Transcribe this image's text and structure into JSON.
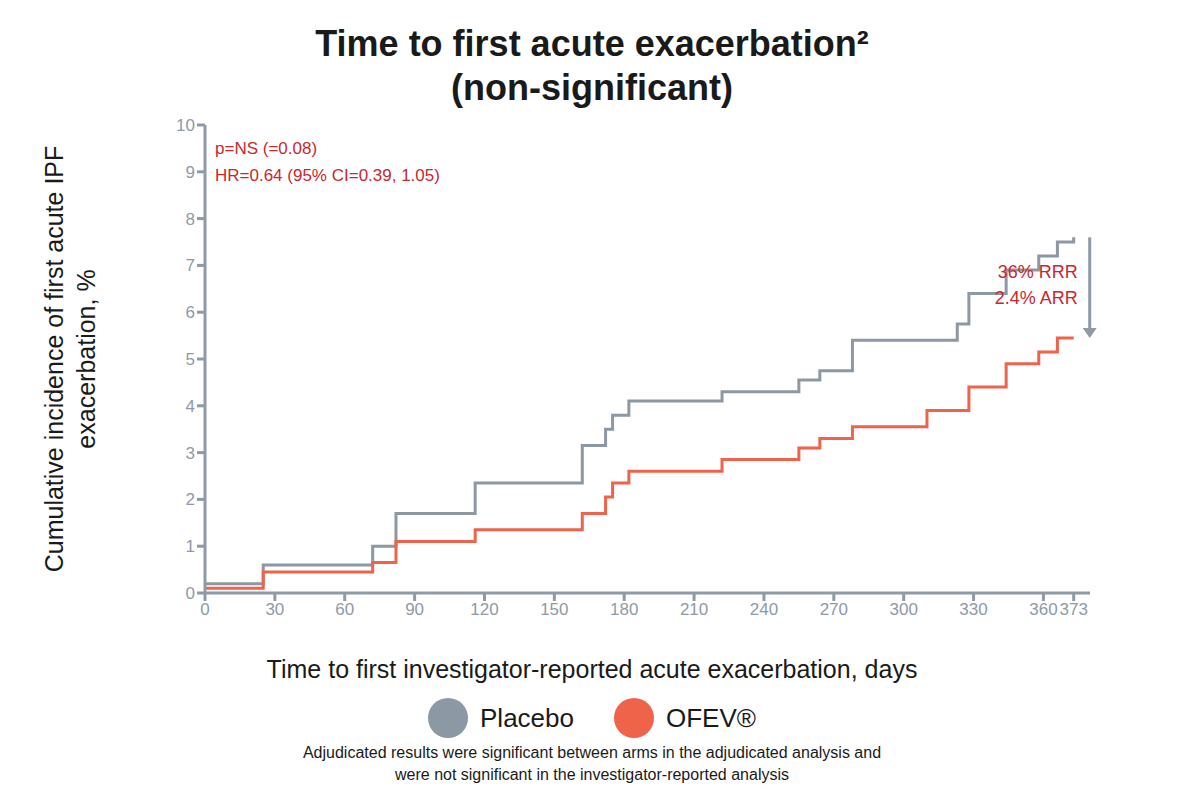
{
  "chart_data": {
    "type": "line",
    "title": "Time to first acute exacerbation²",
    "subtitle": "(non-significant)",
    "x_label": "Time to first investigator-reported acute exacerbation, days",
    "y_label": "Cumulative incidence of first acute IPF exacerbation, %",
    "x": [
      0,
      25,
      72,
      82,
      116,
      162,
      172,
      175,
      182,
      222,
      255,
      264,
      278,
      310,
      323,
      328,
      344,
      358,
      366,
      373
    ],
    "series": [
      {
        "name": "Placebo",
        "color": "#8c98a4",
        "line_style": "step",
        "values": [
          0.2,
          0.6,
          1.0,
          1.7,
          2.35,
          3.15,
          3.5,
          3.8,
          4.1,
          4.3,
          4.55,
          4.75,
          5.4,
          5.4,
          5.75,
          6.4,
          6.9,
          7.2,
          7.5,
          7.6
        ]
      },
      {
        "name": "OFEV®",
        "color": "#f0634b",
        "line_style": "step",
        "values": [
          0.1,
          0.45,
          0.65,
          1.1,
          1.35,
          1.7,
          2.05,
          2.35,
          2.6,
          2.85,
          3.1,
          3.3,
          3.55,
          3.9,
          3.9,
          4.4,
          4.9,
          5.15,
          5.45,
          5.45
        ]
      }
    ],
    "xlim": [
      0,
      380
    ],
    "xticks": [
      0,
      30,
      60,
      90,
      120,
      150,
      180,
      210,
      240,
      270,
      300,
      330,
      360,
      373
    ],
    "ylim": [
      0,
      10
    ],
    "yticks": [
      0,
      1,
      2,
      3,
      4,
      5,
      6,
      7,
      8,
      9,
      10
    ],
    "grid": false,
    "annotations": [
      "p=NS (=0.08)",
      "HR=0.64 (95% CI=0.39, 1.05)",
      "36% RRR",
      "2.4% ARR"
    ],
    "footnote": "Adjudicated results were significant between arms in the adjudicated analysis and were not significant in the investigator-reported analysis"
  }
}
